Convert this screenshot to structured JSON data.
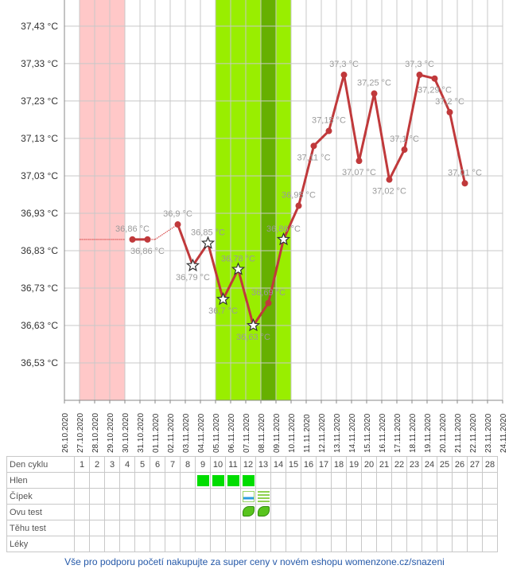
{
  "chart_data": {
    "type": "line",
    "y_ticks": [
      "36,53 °C",
      "36,63 °C",
      "36,73 °C",
      "36,83 °C",
      "36,93 °C",
      "37,03 °C",
      "37,13 °C",
      "37,23 °C",
      "37,33 °C",
      "37,43 °C"
    ],
    "ylim": [
      36.43,
      37.5
    ],
    "x_ticks": [
      "26.10.2020",
      "27.10.2020",
      "28.10.2020",
      "29.10.2020",
      "30.10.2020",
      "31.10.2020",
      "01.11.2020",
      "02.11.2020",
      "03.11.2020",
      "04.11.2020",
      "05.11.2020",
      "06.11.2020",
      "07.11.2020",
      "08.11.2020",
      "09.11.2020",
      "10.11.2020",
      "11.11.2020",
      "12.11.2020",
      "13.11.2020",
      "14.11.2020",
      "15.11.2020",
      "16.11.2020",
      "17.11.2020",
      "18.11.2020",
      "19.11.2020",
      "20.11.2020",
      "21.11.2020",
      "22.11.2020",
      "23.11.2020",
      "24.11.2020"
    ],
    "highlights": [
      {
        "from": "27.10.2020",
        "to": "30.10.2020",
        "color": "#ffc8c8"
      },
      {
        "from": "05.11.2020",
        "to": "10.11.2020",
        "color": "#99ee00"
      },
      {
        "from": "08.11.2020",
        "to": "09.11.2020",
        "color": "#66b000"
      }
    ],
    "interpolated_lines": [
      {
        "from": 27,
        "to": 30,
        "value": 36.86
      },
      {
        "from": 31.5,
        "to": 32,
        "value": 36.86
      },
      {
        "from": 32,
        "to": 33.5,
        "value": 36.86,
        "to_value": 36.9
      },
      {
        "from": 56,
        "to": 58,
        "value": 37.01
      }
    ],
    "points": [
      {
        "x": 30.5,
        "y": 36.86,
        "label": "36,86 °C",
        "marker": "dot",
        "lpos": "above"
      },
      {
        "x": 31.5,
        "y": 36.86,
        "label": "36,86 °C",
        "marker": "dot",
        "lpos": "below"
      },
      {
        "x": 33.5,
        "y": 36.9,
        "label": "36,9 °C",
        "marker": "dot",
        "lpos": "above"
      },
      {
        "x": 34.5,
        "y": 36.79,
        "label": "36,79 °C",
        "marker": "star",
        "lpos": "below"
      },
      {
        "x": 35.5,
        "y": 36.85,
        "label": "36,85 °C",
        "marker": "star",
        "lpos": "above"
      },
      {
        "x": 36.5,
        "y": 36.7,
        "label": "36,7 °C",
        "marker": "star",
        "lpos": "below"
      },
      {
        "x": 37.5,
        "y": 36.78,
        "label": "36,78 °C",
        "marker": "star",
        "lpos": "above"
      },
      {
        "x": 38.5,
        "y": 36.63,
        "label": "36,63 °C",
        "marker": "star",
        "lpos": "below"
      },
      {
        "x": 39.5,
        "y": 36.69,
        "label": "36,69 °C",
        "marker": "dot",
        "lpos": "above"
      },
      {
        "x": 40.5,
        "y": 36.86,
        "label": "36,86 °C",
        "marker": "star",
        "lpos": "above"
      },
      {
        "x": 41.5,
        "y": 36.95,
        "label": "36,95 °C",
        "marker": "dot",
        "lpos": "above"
      },
      {
        "x": 42.5,
        "y": 37.11,
        "label": "37,11 °C",
        "marker": "dot",
        "lpos": "below"
      },
      {
        "x": 43.5,
        "y": 37.15,
        "label": "37,15 °C",
        "marker": "dot",
        "lpos": "above"
      },
      {
        "x": 44.5,
        "y": 37.3,
        "label": "37,3 °C",
        "marker": "dot",
        "lpos": "above"
      },
      {
        "x": 45.5,
        "y": 37.07,
        "label": "37,07 °C",
        "marker": "dot",
        "lpos": "below"
      },
      {
        "x": 46.5,
        "y": 37.25,
        "label": "37,25 °C",
        "marker": "dot",
        "lpos": "above"
      },
      {
        "x": 47.5,
        "y": 37.02,
        "label": "37,02 °C",
        "marker": "dot",
        "lpos": "below"
      },
      {
        "x": 48.5,
        "y": 37.1,
        "label": "37,1 °C",
        "marker": "dot",
        "lpos": "above"
      },
      {
        "x": 49.5,
        "y": 37.3,
        "label": "37,3 °C",
        "marker": "dot",
        "lpos": "above"
      },
      {
        "x": 50.5,
        "y": 37.29,
        "label": "37,29 °C",
        "marker": "dot",
        "lpos": "below"
      },
      {
        "x": 51.5,
        "y": 37.2,
        "label": "37,2 °C",
        "marker": "dot",
        "lpos": "above"
      },
      {
        "x": 52.5,
        "y": 37.01,
        "label": "37,01 °C",
        "marker": "dot",
        "lpos": "above"
      }
    ],
    "colors": {
      "line": "#c0393b",
      "grid": "#c8c8c8",
      "interp": "#d84a4a"
    }
  },
  "table": {
    "rows": [
      "Den cyklu",
      "Hlen",
      "Čípek",
      "Ovu test",
      "Těhu test",
      "Léky"
    ],
    "days": [
      "1",
      "2",
      "3",
      "4",
      "5",
      "6",
      "7",
      "8",
      "9",
      "10",
      "11",
      "12",
      "13",
      "14",
      "15",
      "16",
      "17",
      "18",
      "19",
      "20",
      "21",
      "22",
      "23",
      "24",
      "25",
      "26",
      "27",
      "28"
    ],
    "hlen_days": [
      9,
      10,
      11,
      12
    ],
    "cipek": [
      {
        "day": 12,
        "style": "blue"
      },
      {
        "day": 13,
        "style": "green"
      }
    ],
    "ovu_days": [
      12,
      13
    ]
  },
  "footer": "Vše pro podporu početí nakupujte za super ceny v novém eshopu womenzone.cz/snazeni"
}
